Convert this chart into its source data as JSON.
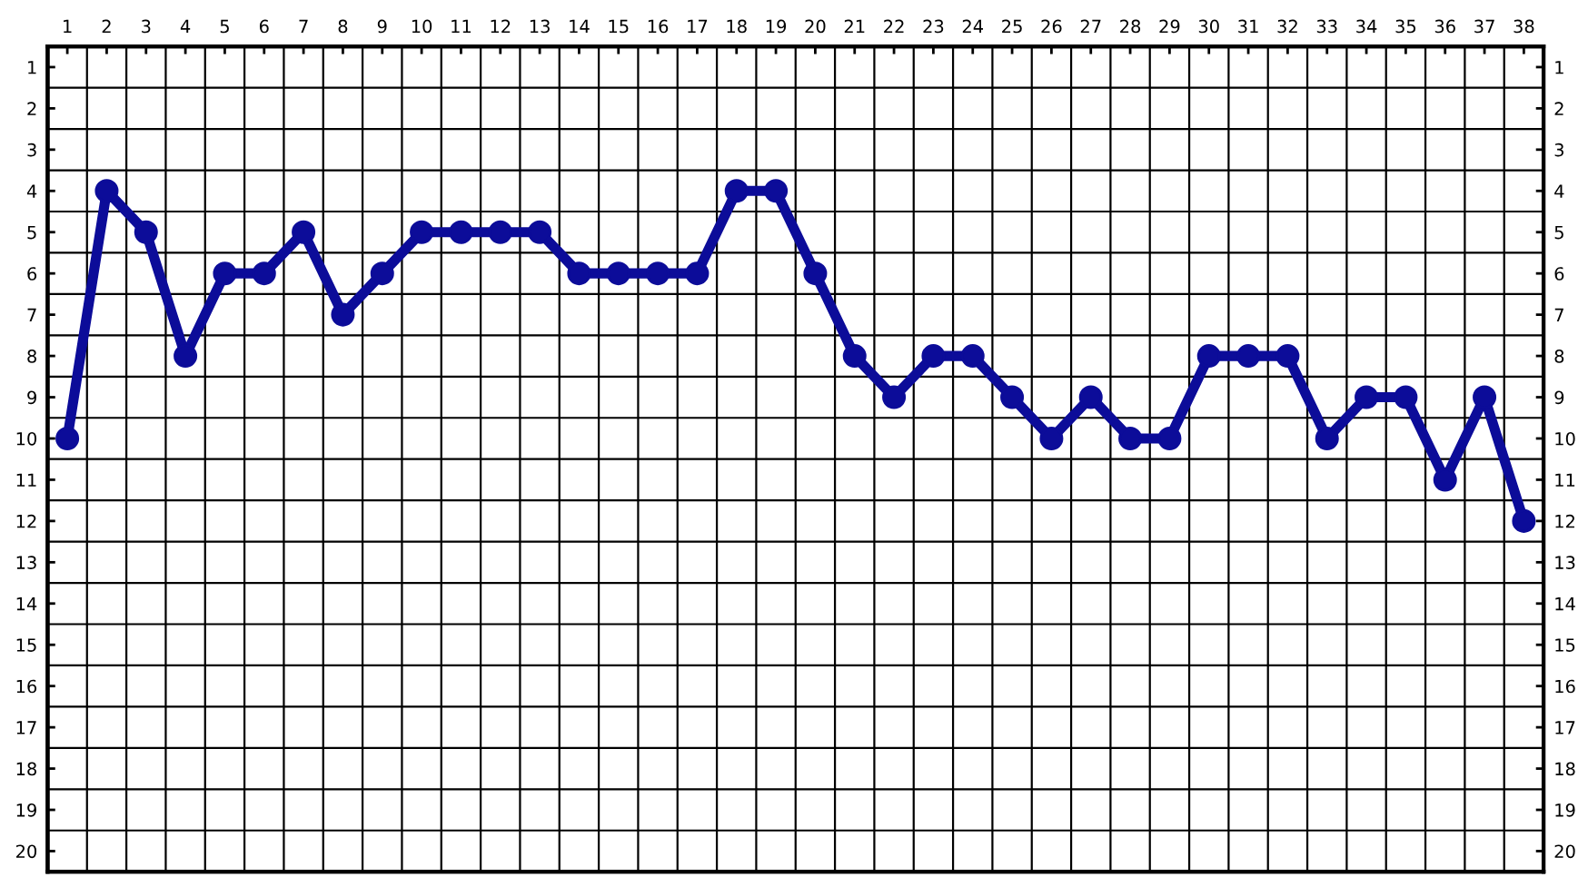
{
  "chart_data": {
    "type": "line",
    "categories": [
      "1",
      "2",
      "3",
      "4",
      "5",
      "6",
      "7",
      "8",
      "9",
      "10",
      "11",
      "12",
      "13",
      "14",
      "15",
      "16",
      "17",
      "18",
      "19",
      "20",
      "21",
      "22",
      "23",
      "24",
      "25",
      "26",
      "27",
      "28",
      "29",
      "30",
      "31",
      "32",
      "33",
      "34",
      "35",
      "36",
      "37",
      "38"
    ],
    "series": [
      {
        "color": "#0c0c99",
        "values": [
          10,
          4,
          5,
          8,
          6,
          6,
          5,
          7,
          6,
          5,
          5,
          5,
          5,
          6,
          6,
          6,
          6,
          4,
          4,
          6,
          8,
          9,
          8,
          8,
          9,
          10,
          9,
          10,
          10,
          8,
          8,
          8,
          10,
          9,
          9,
          11,
          9,
          12
        ]
      }
    ],
    "ylim": [
      20.5,
      0.5
    ],
    "yticks": [
      1,
      2,
      3,
      4,
      5,
      6,
      7,
      8,
      9,
      10,
      11,
      12,
      13,
      14,
      15,
      16,
      17,
      18,
      19,
      20
    ],
    "y2lim": [
      20.5,
      0.5
    ],
    "y2ticks": [
      1,
      2,
      3,
      4,
      5,
      6,
      7,
      8,
      9,
      10,
      11,
      12,
      13,
      14,
      15,
      16,
      17,
      18,
      19,
      20
    ],
    "grid": true,
    "marker": "circle",
    "line_style": "solid",
    "legend": false
  }
}
